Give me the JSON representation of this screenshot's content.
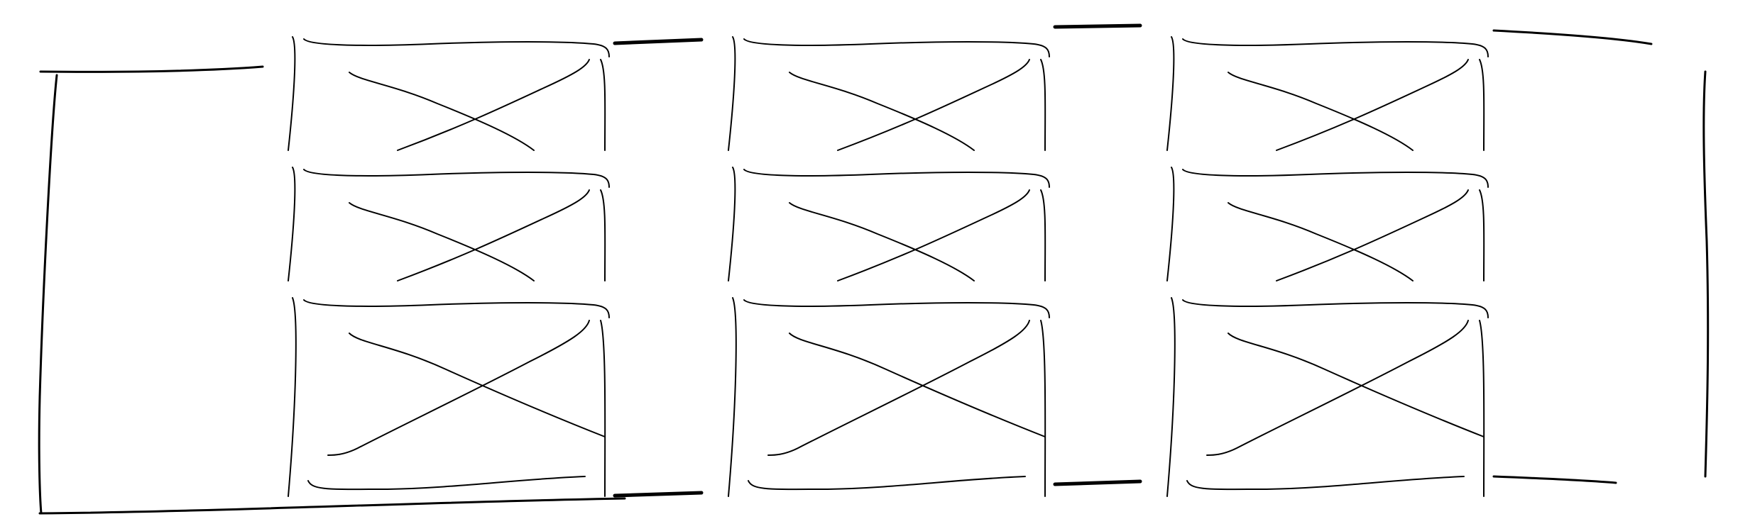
{
  "sketch": {
    "kind": "hand-drawn wireframe",
    "stroke_color": "#000000",
    "background_color": "#ffffff",
    "columns": 3,
    "rows": 3,
    "placeholder_icon": "x-cross-image-placeholder"
  }
}
